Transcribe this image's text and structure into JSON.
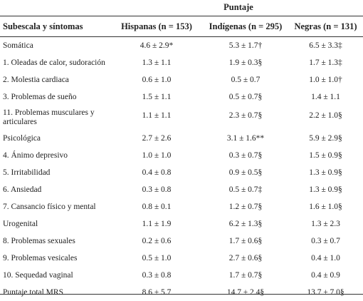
{
  "table": {
    "group_header": "Puntaje",
    "columns": [
      "Subescala y síntomas",
      "Hispanas (n = 153)",
      "Indígenas (n = 295)",
      "Negras (n = 131)"
    ],
    "rows": [
      {
        "label": "Somática",
        "hispanas": "4.6 ± 2.9*",
        "indigenas": "5.3 ± 1.7†",
        "negras": "6.5 ± 3.3‡"
      },
      {
        "label": "1. Oleadas de calor, sudoración",
        "hispanas": "1.3 ± 1.1",
        "indigenas": "1.9 ± 0.3§",
        "negras": "1.7 ± 1.3‡"
      },
      {
        "label": "2. Molestia cardiaca",
        "hispanas": "0.6 ± 1.0",
        "indigenas": "0.5 ± 0.7",
        "negras": "1.0 ± 1.0†"
      },
      {
        "label": "3. Problemas de sueño",
        "hispanas": "1.5 ± 1.1",
        "indigenas": "0.5 ± 0.7§",
        "negras": "1.4 ± 1.1"
      },
      {
        "label": "11. Problemas musculares y articulares",
        "hispanas": "1.1 ± 1.1",
        "indigenas": "2.3 ± 0.7§",
        "negras": "2.2 ± 1.0§"
      },
      {
        "label": "Psicológica",
        "hispanas": "2.7 ± 2.6",
        "indigenas": "3.1 ± 1.6**",
        "negras": "5.9 ± 2.9§"
      },
      {
        "label": "4. Ánimo depresivo",
        "hispanas": "1.0 ± 1.0",
        "indigenas": "0.3 ± 0.7§",
        "negras": "1.5 ± 0.9§"
      },
      {
        "label": "5. Irritabilidad",
        "hispanas": "0.4 ± 0.8",
        "indigenas": "0.9 ± 0.5§",
        "negras": "1.3 ± 0.9§"
      },
      {
        "label": "6. Ansiedad",
        "hispanas": "0.3 ± 0.8",
        "indigenas": "0.5 ± 0.7‡",
        "negras": "1.3 ± 0.9§"
      },
      {
        "label": "7. Cansancio físico y mental",
        "hispanas": "0.8 ± 0.1",
        "indigenas": "1.2 ± 0.7§",
        "negras": "1.6 ± 1.0§"
      },
      {
        "label": "Urogenital",
        "hispanas": "1.1 ± 1.9",
        "indigenas": "6.2 ± 1.3§",
        "negras": "1.3 ± 2.3"
      },
      {
        "label": "8. Problemas sexuales",
        "hispanas": "0.2 ± 0.6",
        "indigenas": "1.7 ± 0.6§",
        "negras": "0.3 ± 0.7"
      },
      {
        "label": "9. Problemas vesicales",
        "hispanas": "0.5 ± 1.0",
        "indigenas": "2.7 ± 0.6§",
        "negras": "0.4 ± 1.0"
      },
      {
        "label": "10. Sequedad vaginal",
        "hispanas": "0.3 ± 0.8",
        "indigenas": "1.7 ± 0.7§",
        "negras": "0.4 ± 0.9"
      },
      {
        "label": "Puntaje total MRS",
        "hispanas": "8.6 ± 5.7",
        "indigenas": "14.7 ± 2.4§",
        "negras": "13.7 ± 7.0§"
      }
    ]
  }
}
